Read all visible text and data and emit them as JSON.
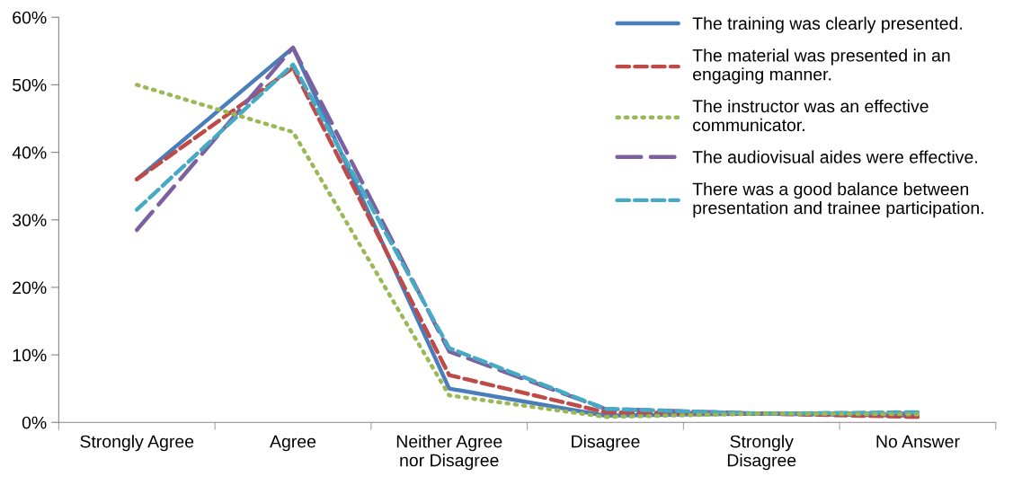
{
  "chart_data": {
    "type": "line",
    "categories": [
      "Strongly Agree",
      "Agree",
      "Neither Agree\nnor Disagree",
      "Disagree",
      "Strongly\nDisagree",
      "No Answer"
    ],
    "series": [
      {
        "name": "The training was clearly presented.",
        "color": "#4a7ebb",
        "line_style": "solid",
        "values": [
          36,
          55.5,
          5,
          1,
          1.3,
          1
        ]
      },
      {
        "name": "The material was presented in an\nengaging manner.",
        "color": "#be4b48",
        "line_style": "dashed",
        "values": [
          36,
          52.5,
          7,
          1.5,
          1.3,
          0.8
        ]
      },
      {
        "name": "The instructor was an effective\ncommunicator.",
        "color": "#98b954",
        "line_style": "dotted",
        "values": [
          50,
          43,
          4,
          0.8,
          1.3,
          1.2
        ]
      },
      {
        "name": "The audiovisual aides were effective.",
        "color": "#7d60a0",
        "line_style": "longdash",
        "values": [
          28.5,
          55.5,
          10.5,
          2,
          1.3,
          1.3
        ]
      },
      {
        "name": "There was a good balance between\npresentation and trainee participation.",
        "color": "#46aac5",
        "line_style": "dashed",
        "values": [
          31.5,
          53,
          11,
          2,
          1.3,
          1.5
        ]
      }
    ],
    "ylim": [
      0,
      60
    ],
    "yticks": [
      {
        "value": 0,
        "label": "0%"
      },
      {
        "value": 10,
        "label": "10%"
      },
      {
        "value": 20,
        "label": "20%"
      },
      {
        "value": 30,
        "label": "30%"
      },
      {
        "value": 40,
        "label": "40%"
      },
      {
        "value": 50,
        "label": "50%"
      },
      {
        "value": 60,
        "label": "60%"
      }
    ],
    "grid": false,
    "legend": "top right",
    "marker": "none"
  }
}
